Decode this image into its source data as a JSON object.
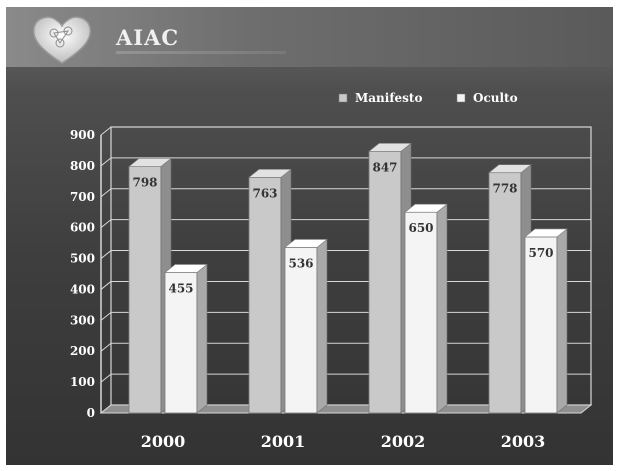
{
  "brand": {
    "name": "AIAC"
  },
  "colors": {
    "manifesto": "#c9c9c9",
    "oculto": "#f4f4f4",
    "grid": "#d8d8d8",
    "text": "#ffffff"
  },
  "chart_data": {
    "type": "bar",
    "categories": [
      "2000",
      "2001",
      "2002",
      "2003"
    ],
    "series": [
      {
        "name": "Manifesto",
        "values": [
          798,
          763,
          847,
          778
        ]
      },
      {
        "name": "Oculto",
        "values": [
          455,
          536,
          650,
          570
        ]
      }
    ],
    "yticks": [
      0,
      100,
      200,
      300,
      400,
      500,
      600,
      700,
      800,
      900
    ],
    "ylim": [
      0,
      900
    ],
    "grid": true,
    "legend_position": "top-right",
    "title": "",
    "xlabel": "",
    "ylabel": ""
  }
}
